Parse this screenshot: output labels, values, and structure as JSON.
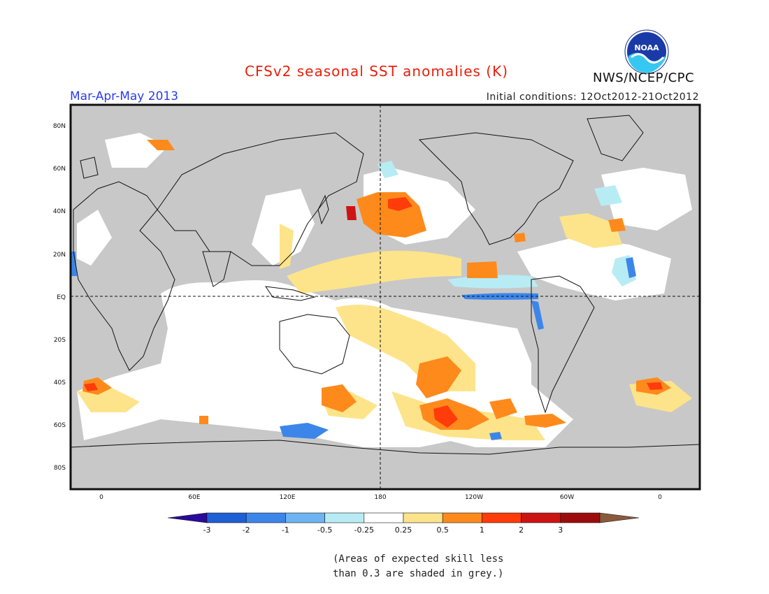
{
  "header": {
    "title": "CFSv2 seasonal SST anomalies (K)",
    "season": "Mar-Apr-May 2013",
    "initial_conditions": "Initial conditions: 12Oct2012-21Oct2012",
    "agency": "NWS/NCEP/CPC",
    "logo_text": "NOAA"
  },
  "map": {
    "lat_labels": [
      "80N",
      "60N",
      "40N",
      "20N",
      "EQ",
      "20S",
      "40S",
      "60S",
      "80S"
    ],
    "lon_labels": [
      "0",
      "60E",
      "120E",
      "180",
      "120W",
      "60W",
      "0"
    ],
    "colors": {
      "ocean_noskill": "#c8c8c8",
      "neutral": "#ffffff",
      "land_outline": "#111111"
    }
  },
  "colorbar": {
    "labels": [
      "-3",
      "-2",
      "-1",
      "-0.5",
      "-0.25",
      "0.25",
      "0.5",
      "1",
      "2",
      "3"
    ],
    "colors": [
      "#2a0a9c",
      "#1f5fd6",
      "#3c86ea",
      "#6eb4f2",
      "#b8ecf4",
      "#ffffff",
      "#fde48a",
      "#ff8a1c",
      "#ff3c0a",
      "#cc1414",
      "#9c0c0c",
      "#8a5a3c"
    ]
  },
  "note": {
    "line1": "(Areas of expected skill less",
    "line2": "than 0.3 are shaded in grey.)"
  }
}
